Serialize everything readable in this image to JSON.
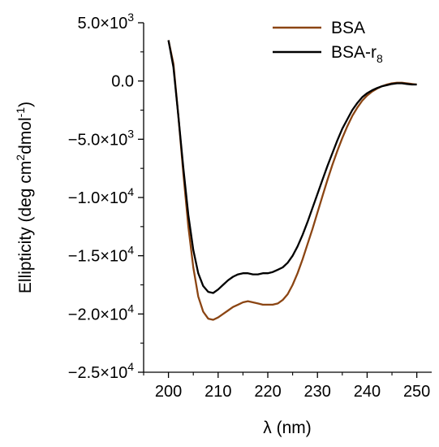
{
  "chart_data": {
    "type": "line",
    "xlabel": "λ (nm)",
    "ylabel": "Ellipticity (deg cm²dmol⁻¹)",
    "ylabel_parts": {
      "base": "Ellipticity (deg cm",
      "sup1": "2",
      "mid": "dmol",
      "sup2": "-1",
      "end": ")"
    },
    "xlabel_parts": {
      "lambda": "λ",
      "rest": " (nm)"
    },
    "xlim": [
      195,
      253
    ],
    "ylim": [
      -25000,
      5000
    ],
    "x_ticks": [
      200,
      210,
      220,
      230,
      240,
      250
    ],
    "x_tick_labels": [
      "200",
      "210",
      "220",
      "230",
      "240",
      "250"
    ],
    "y_ticks": [
      5000,
      0,
      -5000,
      -10000,
      -15000,
      -20000,
      -25000
    ],
    "y_tick_labels": [
      {
        "mantissa": "5.0×10",
        "exp": "3"
      },
      {
        "mantissa": "0.0",
        "exp": ""
      },
      {
        "mantissa": "−5.0×10",
        "exp": "3"
      },
      {
        "mantissa": "−1.0×10",
        "exp": "4"
      },
      {
        "mantissa": "−1.5×10",
        "exp": "4"
      },
      {
        "mantissa": "−2.0×10",
        "exp": "4"
      },
      {
        "mantissa": "−2.5×10",
        "exp": "4"
      }
    ],
    "legend_position": "top-right",
    "grid": false,
    "series": [
      {
        "name": "BSA",
        "legend_parts": {
          "base": "BSA",
          "sub": ""
        },
        "color": "#8B4513",
        "x": [
          200,
          201,
          202,
          203,
          204,
          205,
          206,
          207,
          208,
          209,
          210,
          211,
          212,
          213,
          214,
          215,
          216,
          217,
          218,
          219,
          220,
          221,
          222,
          223,
          224,
          225,
          226,
          227,
          228,
          229,
          230,
          231,
          232,
          233,
          234,
          235,
          236,
          237,
          238,
          239,
          240,
          241,
          242,
          243,
          244,
          245,
          246,
          247,
          248,
          249,
          250
        ],
        "y": [
          3500,
          1500,
          -3000,
          -8000,
          -12500,
          -16000,
          -18500,
          -19800,
          -20400,
          -20500,
          -20300,
          -20000,
          -19700,
          -19400,
          -19200,
          -19000,
          -18900,
          -19000,
          -19100,
          -19200,
          -19200,
          -19200,
          -19100,
          -18800,
          -18300,
          -17500,
          -16500,
          -15300,
          -14000,
          -12700,
          -11300,
          -9900,
          -8500,
          -7200,
          -6000,
          -4900,
          -3900,
          -3000,
          -2300,
          -1700,
          -1250,
          -900,
          -650,
          -450,
          -300,
          -200,
          -150,
          -150,
          -200,
          -250,
          -300
        ]
      },
      {
        "name": "BSA-r8",
        "legend_parts": {
          "base": "BSA-r",
          "sub": "8"
        },
        "color": "#000000",
        "x": [
          200,
          201,
          202,
          203,
          204,
          205,
          206,
          207,
          208,
          209,
          210,
          211,
          212,
          213,
          214,
          215,
          216,
          217,
          218,
          219,
          220,
          221,
          222,
          223,
          224,
          225,
          226,
          227,
          228,
          229,
          230,
          231,
          232,
          233,
          234,
          235,
          236,
          237,
          238,
          239,
          240,
          241,
          242,
          243,
          244,
          245,
          246,
          247,
          248,
          249,
          250
        ],
        "y": [
          3500,
          1200,
          -3000,
          -7500,
          -11500,
          -14500,
          -16500,
          -17600,
          -18100,
          -18200,
          -17900,
          -17500,
          -17100,
          -16800,
          -16600,
          -16500,
          -16500,
          -16600,
          -16600,
          -16500,
          -16500,
          -16400,
          -16200,
          -16000,
          -15600,
          -15000,
          -14200,
          -13200,
          -12100,
          -10900,
          -9700,
          -8500,
          -7300,
          -6200,
          -5100,
          -4100,
          -3300,
          -2500,
          -1900,
          -1400,
          -1050,
          -800,
          -600,
          -450,
          -350,
          -250,
          -200,
          -200,
          -250,
          -300,
          -300
        ]
      }
    ]
  }
}
